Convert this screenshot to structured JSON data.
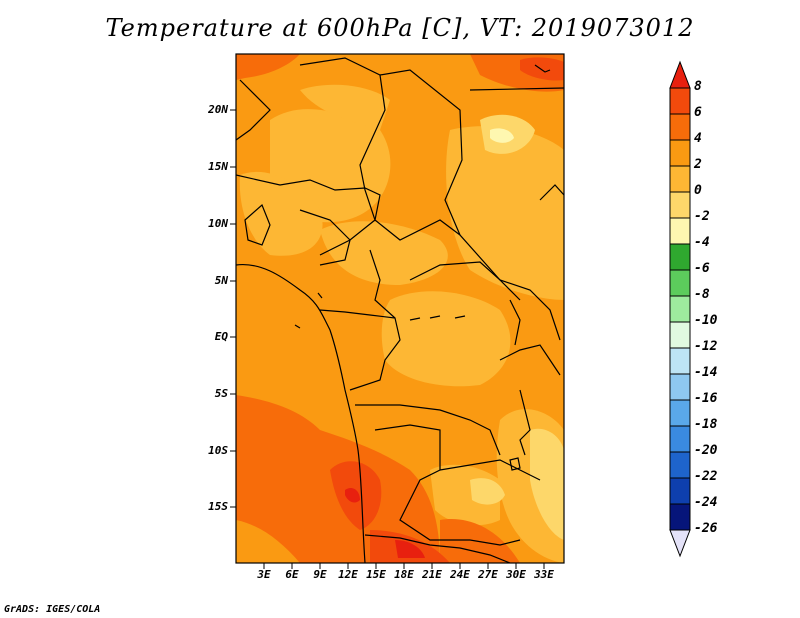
{
  "title": "Temperature at 600hPa [C], VT: 2019073012",
  "footer": "GrADS: IGES/COLA",
  "axes": {
    "y_ticks": [
      "20N",
      "15N",
      "10N",
      "5N",
      "EQ",
      "5S",
      "10S",
      "15S"
    ],
    "x_ticks": [
      "3E",
      "6E",
      "9E",
      "12E",
      "15E",
      "18E",
      "21E",
      "24E",
      "27E",
      "30E",
      "33E"
    ]
  },
  "colorbar": {
    "labels": [
      "8",
      "6",
      "4",
      "2",
      "0",
      "-2",
      "-4",
      "-6",
      "-8",
      "-10",
      "-12",
      "-14",
      "-16",
      "-18",
      "-20",
      "-22",
      "-24",
      "-26"
    ],
    "colors": [
      "#e8200f",
      "#f24a0c",
      "#f76c0a",
      "#fa9a12",
      "#fdb734",
      "#fdd76a",
      "#fef7b0",
      "#2fa82f",
      "#5ccc5c",
      "#9eeb9e",
      "#e0fae0",
      "#bde4f5",
      "#8ec8f0",
      "#5aa8ea",
      "#3a8ae0",
      "#1e64cc",
      "#0e3fae",
      "#06157a",
      "#e4e2f8"
    ]
  }
}
